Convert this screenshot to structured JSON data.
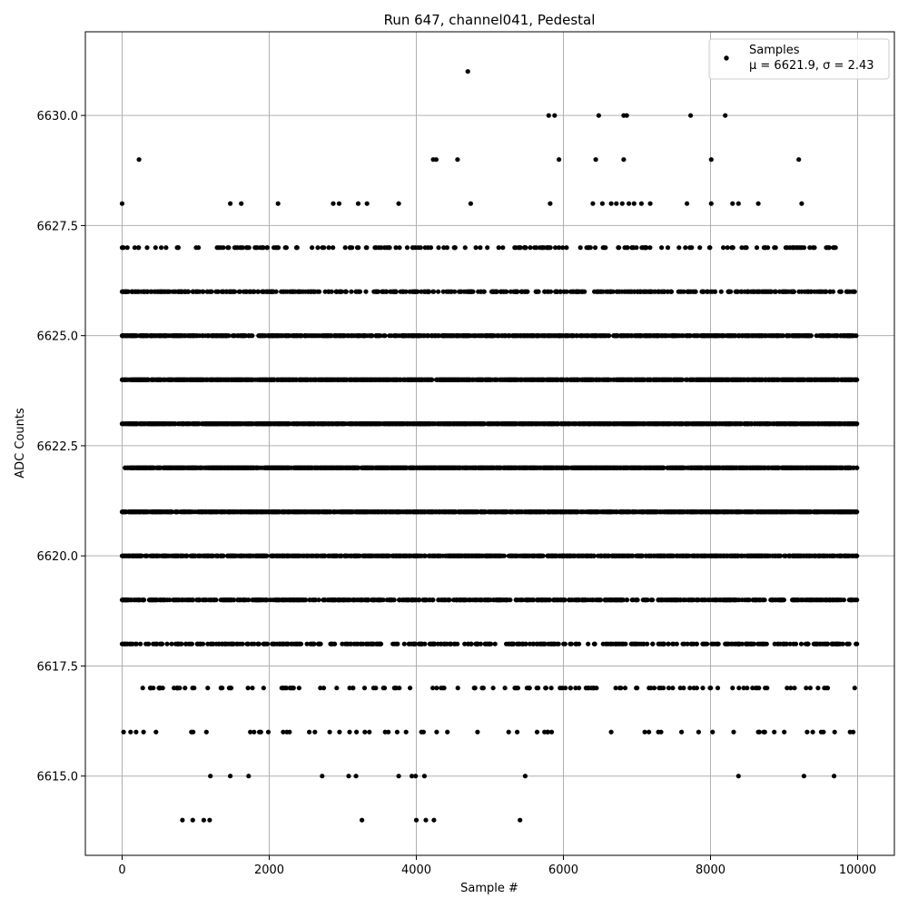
{
  "chart_data": {
    "type": "scatter",
    "title": "Run 647, channel041, Pedestal",
    "xlabel": "Sample #",
    "ylabel": "ADC Counts",
    "xlim": [
      -500,
      10500
    ],
    "ylim": [
      6613.2,
      6631.9
    ],
    "xticks": [
      0,
      2000,
      4000,
      6000,
      8000,
      10000
    ],
    "xtick_labels": [
      "0",
      "2000",
      "4000",
      "6000",
      "8000",
      "10000"
    ],
    "yticks": [
      6615.0,
      6617.5,
      6620.0,
      6622.5,
      6625.0,
      6627.5,
      6630.0
    ],
    "ytick_labels": [
      "6615.0",
      "6617.5",
      "6620.0",
      "6622.5",
      "6625.0",
      "6627.5",
      "6630.0"
    ],
    "grid": true,
    "legend_position": "top-right",
    "series": [
      {
        "name": "Samples",
        "stats_label": "μ = 6621.9, σ = 2.43",
        "color": "#000000",
        "n_samples": 10000,
        "mean": 6621.9,
        "sigma": 2.43,
        "points": [
          [
            4700,
            6631
          ],
          [
            5800,
            6630
          ],
          [
            5880,
            6630
          ],
          [
            6480,
            6630
          ],
          [
            6820,
            6630
          ],
          [
            6860,
            6630
          ],
          [
            7730,
            6630
          ],
          [
            8200,
            6630
          ],
          [
            230,
            6629
          ],
          [
            4230,
            6629
          ],
          [
            4270,
            6629
          ],
          [
            4560,
            6629
          ],
          [
            5940,
            6629
          ],
          [
            6440,
            6629
          ],
          [
            6820,
            6629
          ],
          [
            8010,
            6629
          ],
          [
            9200,
            6629
          ],
          [
            0,
            6628
          ],
          [
            1470,
            6628
          ],
          [
            1620,
            6628
          ],
          [
            2120,
            6628
          ],
          [
            2870,
            6628
          ],
          [
            2950,
            6628
          ],
          [
            3210,
            6628
          ],
          [
            3330,
            6628
          ],
          [
            3760,
            6628
          ],
          [
            4740,
            6628
          ],
          [
            5820,
            6628
          ],
          [
            6400,
            6628
          ],
          [
            6530,
            6628
          ],
          [
            6650,
            6628
          ],
          [
            6720,
            6628
          ],
          [
            6800,
            6628
          ],
          [
            6890,
            6628
          ],
          [
            6960,
            6628
          ],
          [
            7060,
            6628
          ],
          [
            7180,
            6628
          ],
          [
            7680,
            6628
          ],
          [
            8010,
            6628
          ],
          [
            8300,
            6628
          ],
          [
            8380,
            6628
          ],
          [
            8650,
            6628
          ],
          [
            9240,
            6628
          ],
          [
            820,
            6614
          ],
          [
            960,
            6614
          ],
          [
            1110,
            6614
          ],
          [
            1190,
            6614
          ],
          [
            3260,
            6614
          ],
          [
            4000,
            6614
          ],
          [
            4130,
            6614
          ],
          [
            4240,
            6614
          ],
          [
            5410,
            6614
          ],
          [
            1200,
            6615
          ],
          [
            1470,
            6615
          ],
          [
            1720,
            6615
          ],
          [
            2720,
            6615
          ],
          [
            3080,
            6615
          ],
          [
            3180,
            6615
          ],
          [
            3760,
            6615
          ],
          [
            3940,
            6615
          ],
          [
            3990,
            6615
          ],
          [
            4110,
            6615
          ],
          [
            5480,
            6615
          ],
          [
            8380,
            6615
          ],
          [
            9270,
            6615
          ],
          [
            9680,
            6615
          ]
        ],
        "rows": [
          {
            "y": 6627,
            "count": 190,
            "xmin": 0,
            "xmax": 9700
          },
          {
            "y": 6626,
            "count": 520,
            "xmin": 0,
            "xmax": 9960
          },
          {
            "y": 6625,
            "count": 1050,
            "xmin": 0,
            "xmax": 9980
          },
          {
            "y": 6624,
            "count": 1500,
            "xmin": 0,
            "xmax": 9990
          },
          {
            "y": 6623,
            "count": 1650,
            "xmin": 0,
            "xmax": 9990
          },
          {
            "y": 6622,
            "count": 1650,
            "xmin": 40,
            "xmax": 9990
          },
          {
            "y": 6621,
            "count": 1500,
            "xmin": 0,
            "xmax": 9990
          },
          {
            "y": 6620,
            "count": 1050,
            "xmin": 0,
            "xmax": 9990
          },
          {
            "y": 6619,
            "count": 760,
            "xmin": 0,
            "xmax": 9990
          },
          {
            "y": 6618,
            "count": 430,
            "xmin": 0,
            "xmax": 9990
          },
          {
            "y": 6617,
            "count": 140,
            "xmin": 280,
            "xmax": 9960
          },
          {
            "y": 6616,
            "count": 60,
            "xmin": 20,
            "xmax": 9940
          }
        ]
      }
    ]
  }
}
